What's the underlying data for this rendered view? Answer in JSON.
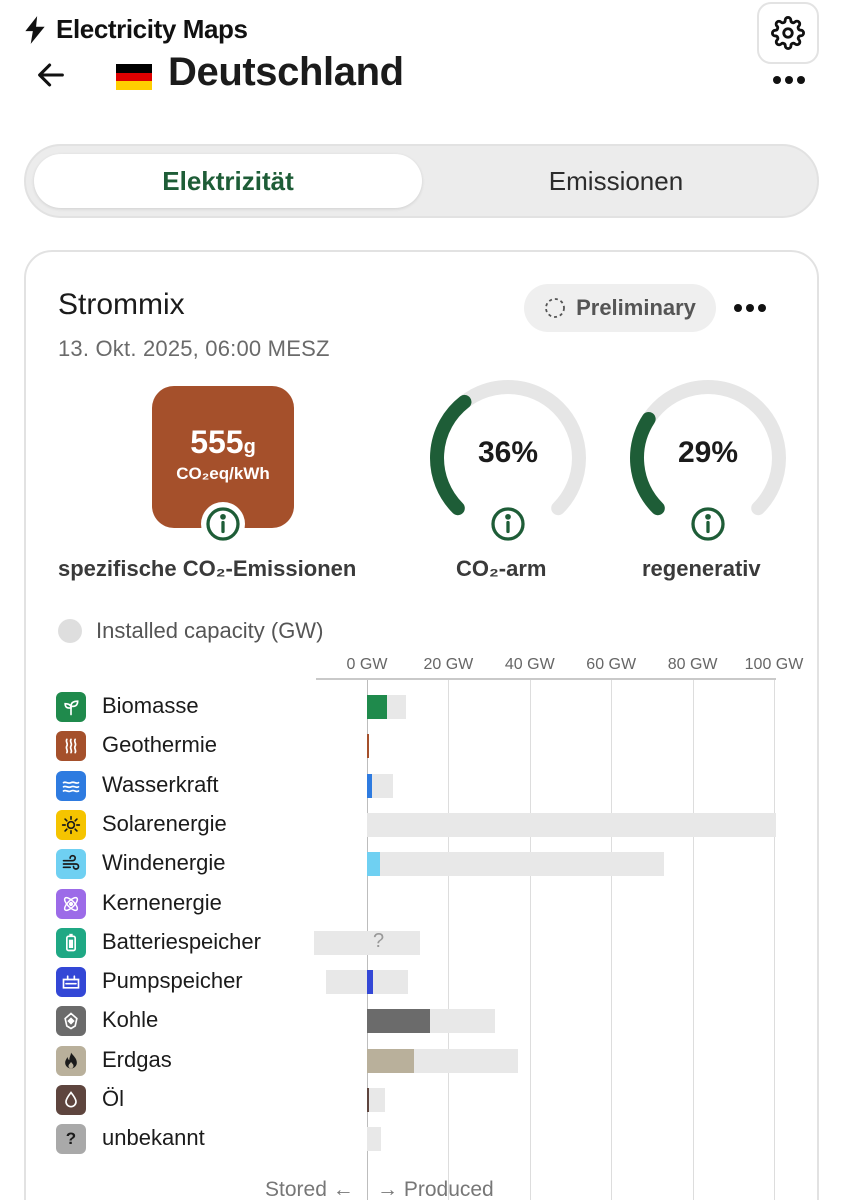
{
  "app": {
    "brand": "Electricity Maps",
    "zone_name": "Deutschland",
    "settings_icon": "gear-icon",
    "more_icon": "more-horizontal-icon",
    "back_icon": "arrow-left-icon",
    "flag_colors": [
      "#000000",
      "#dd0000",
      "#ffce00"
    ]
  },
  "tabs": [
    {
      "label": "Elektrizität",
      "active": true
    },
    {
      "label": "Emissionen",
      "active": false
    }
  ],
  "card": {
    "title": "Strommix",
    "date": "13. Okt. 2025, 06:00 MESZ",
    "preliminary": "Preliminary",
    "co2_value": "555",
    "co2_unit_g": "g",
    "co2_unit": "CO₂eq/kWh",
    "co2_color": "#a5502b",
    "co2_label": "spezifische CO₂-Emissionen",
    "low_carbon_value": "36%",
    "low_carbon_fraction": 0.36,
    "low_carbon_label": "CO₂-arm",
    "renewable_value": "29%",
    "renewable_fraction": 0.29,
    "renewable_label": "regenerativ",
    "gauge_color": "#1e5d37",
    "legend_label": "Installed capacity (GW)"
  },
  "chart_data": {
    "type": "bar",
    "unit": "GW",
    "ticks": [
      "0 GW",
      "20 GW",
      "40 GW",
      "60 GW",
      "80 GW",
      "100 GW"
    ],
    "tick_values": [
      0,
      20,
      40,
      60,
      80,
      100
    ],
    "xlim": [
      -13,
      100
    ],
    "footer_stored": "Stored ←",
    "footer_produced": "→ Produced",
    "rows": [
      {
        "label": "Biomasse",
        "icon": "sprout-icon",
        "color": "#1f8a4c",
        "produced": 5.0,
        "capacity": 9.5
      },
      {
        "label": "Geothermie",
        "icon": "heat-waves-icon",
        "color": "#a5502b",
        "produced": 0.1,
        "capacity": 0.1
      },
      {
        "label": "Wasserkraft",
        "icon": "water-waves-icon",
        "color": "#2e7be0",
        "produced": 1.2,
        "capacity": 6.3
      },
      {
        "label": "Solarenergie",
        "icon": "sun-icon",
        "color": "#f5c400",
        "produced": 0,
        "capacity": 100.5
      },
      {
        "label": "Windenergie",
        "icon": "wind-icon",
        "color": "#6fd0f2",
        "produced": 3.3,
        "capacity": 73
      },
      {
        "label": "Kernenergie",
        "icon": "atom-icon",
        "color": "#9c6be8",
        "produced": 0,
        "capacity": 0
      },
      {
        "label": "Batteriespeicher",
        "icon": "battery-icon",
        "color": "#1fa884",
        "produced": 0,
        "capacity": 13,
        "stored_capacity": 13,
        "unknown": true,
        "unknown_text": "?"
      },
      {
        "label": "Pumpspeicher",
        "icon": "pumped-storage-icon",
        "color": "#3347d6",
        "produced": 1.5,
        "capacity": 10,
        "stored_capacity": 10
      },
      {
        "label": "Kohle",
        "icon": "coal-icon",
        "color": "#6b6b6b",
        "produced": 15.5,
        "capacity": 31.5
      },
      {
        "label": "Erdgas",
        "icon": "flame-icon",
        "color": "#b9b09b",
        "produced": 11.5,
        "capacity": 37
      },
      {
        "label": "Öl",
        "icon": "oil-drop-icon",
        "color": "#5e453e",
        "produced": 0.6,
        "capacity": 4.5
      },
      {
        "label": "unbekannt",
        "icon": "question-icon",
        "color": "#a9a9a9",
        "produced": 0,
        "capacity": 3.5,
        "icon_text": "?"
      }
    ]
  }
}
